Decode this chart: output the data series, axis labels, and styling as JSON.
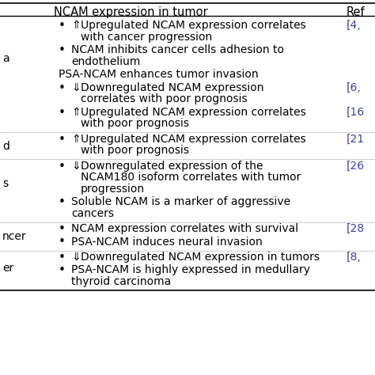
{
  "col2_header": "NCAM expression in tumor",
  "col3_header": "Ref",
  "background": "#ffffff",
  "ref_color": "#4040a0",
  "text_color": "#000000",
  "figsize": [
    4.74,
    4.74
  ],
  "dpi": 100,
  "rows": [
    {
      "cancer": "a",
      "entries": [
        {
          "bullet": true,
          "arrow": "⇑",
          "text": "Upregulated NCAM expression correlates\nwith cancer progression",
          "ref": "[4,"
        },
        {
          "bullet": true,
          "arrow": "",
          "text": "NCAM inhibits cancer cells adhesion to\nendothelium",
          "ref": ""
        },
        {
          "bullet": false,
          "arrow": "",
          "text": "PSA-NCAM enhances tumor invasion",
          "ref": ""
        },
        {
          "bullet": true,
          "arrow": "⇓",
          "text": "Downregulated NCAM expression\ncorrelates with poor prognosis",
          "ref": "[6,"
        },
        {
          "bullet": true,
          "arrow": "⇑",
          "text": "Upregulated NCAM expression correlates\nwith poor prognosis",
          "ref": "[16"
        }
      ]
    },
    {
      "cancer": "d",
      "entries": [
        {
          "bullet": true,
          "arrow": "⇑",
          "text": "Upregulated NCAM expression correlates\nwith poor prognosis",
          "ref": "[21"
        }
      ]
    },
    {
      "cancer": "s",
      "entries": [
        {
          "bullet": true,
          "arrow": "⇓",
          "text": "Downregulated expression of the\nNCAM180 isoform correlates with tumor\nprogression",
          "ref": "[26"
        },
        {
          "bullet": true,
          "arrow": "",
          "text": "Soluble NCAM is a marker of aggressive\ncancers",
          "ref": ""
        }
      ]
    },
    {
      "cancer": "ncer",
      "entries": [
        {
          "bullet": true,
          "arrow": "",
          "text": "NCAM expression correlates with survival",
          "ref": "[28"
        },
        {
          "bullet": true,
          "arrow": "",
          "text": "PSA-NCAM induces neural invasion",
          "ref": ""
        }
      ]
    },
    {
      "cancer": "er",
      "entries": [
        {
          "bullet": true,
          "arrow": "⇓",
          "text": "Downregulated NCAM expression in tumors",
          "ref": "[8,"
        },
        {
          "bullet": true,
          "arrow": "",
          "text": "PSA-NCAM is highly expressed in medullary\nthyroid carcinoma",
          "ref": ""
        }
      ]
    }
  ]
}
